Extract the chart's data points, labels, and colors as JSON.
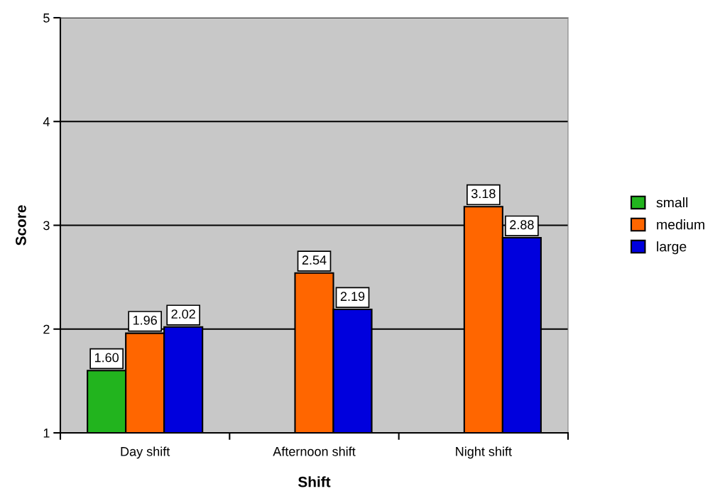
{
  "chart_data": {
    "type": "bar",
    "xlabel": "Shift",
    "ylabel": "Score",
    "categories": [
      "Day shift",
      "Afternoon shift",
      "Night shift"
    ],
    "series": [
      {
        "name": "small",
        "color": "#22b41e",
        "values": [
          1.6,
          null,
          null
        ],
        "value_labels": [
          "1.60",
          null,
          null
        ]
      },
      {
        "name": "medium",
        "color": "#ff6600",
        "values": [
          1.96,
          2.54,
          3.18
        ],
        "value_labels": [
          "1.96",
          "2.54",
          "3.18"
        ]
      },
      {
        "name": "large",
        "color": "#0000dd",
        "values": [
          2.02,
          2.19,
          2.88
        ],
        "value_labels": [
          "2.02",
          "2.19",
          "2.88"
        ]
      }
    ],
    "ylim": [
      1,
      5
    ],
    "yticks": [
      1,
      2,
      3,
      4,
      5
    ],
    "grid": "y",
    "legend": "right"
  }
}
